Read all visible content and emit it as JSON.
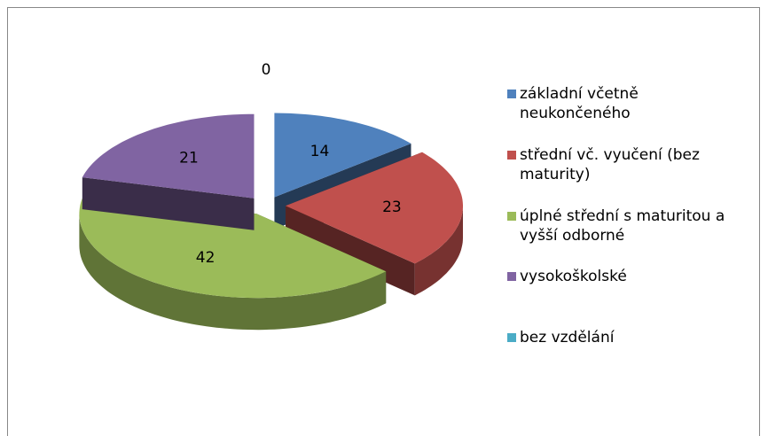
{
  "chart_data": {
    "type": "pie",
    "categories": [
      "základní včetně neukončeného",
      "střední vč. vyučení (bez maturity)",
      "úplné střední s maturitou a vyšší odborné",
      "vysokoškolské",
      "bez vzdělání"
    ],
    "values": [
      14,
      23,
      42,
      21,
      0
    ],
    "colors": [
      "#4f81bd",
      "#c0504d",
      "#9bbb59",
      "#8064a2",
      "#4bacc6"
    ],
    "legend": "right"
  }
}
